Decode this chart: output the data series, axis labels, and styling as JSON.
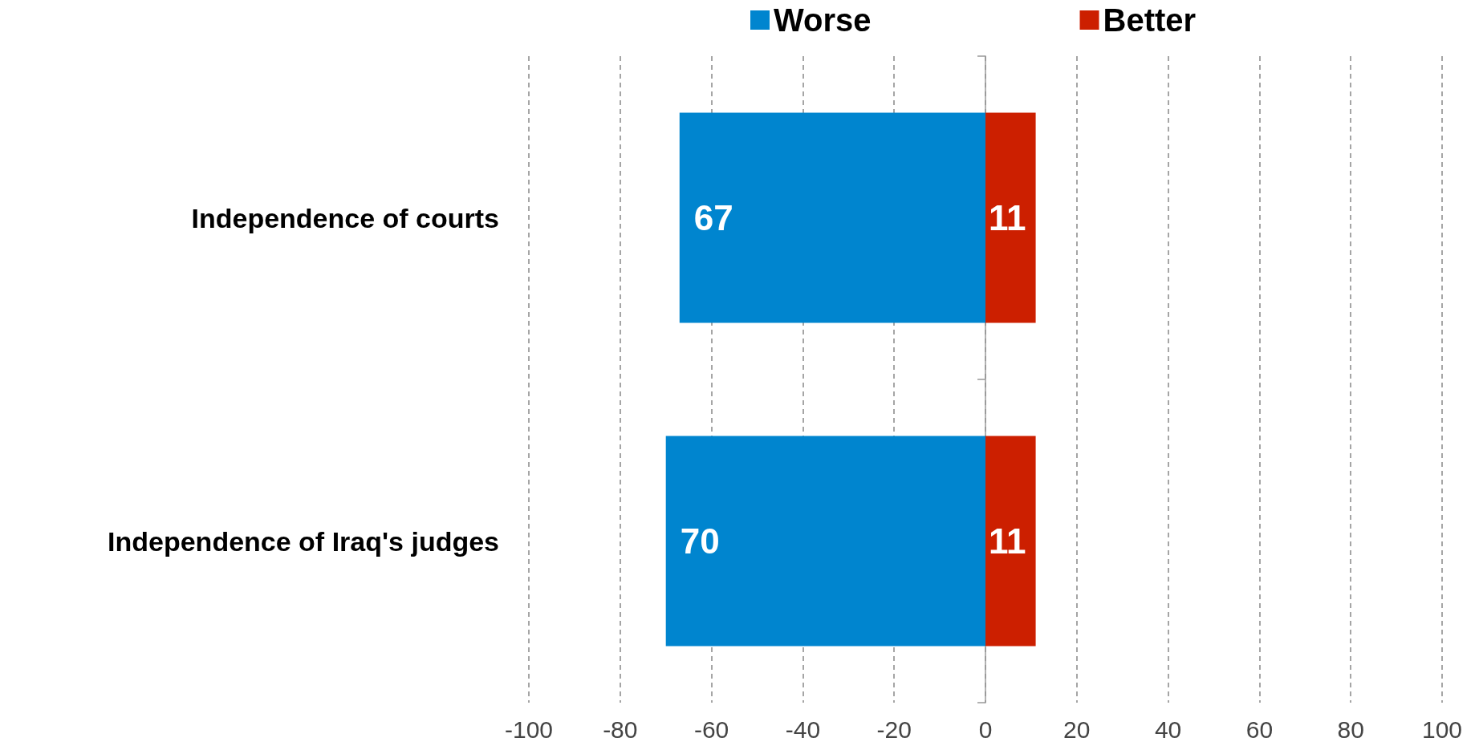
{
  "chart_data": {
    "type": "bar",
    "orientation": "horizontal",
    "categories": [
      "Independence of courts",
      "Independence of Iraq's judges"
    ],
    "series": [
      {
        "name": "Worse",
        "color": "#0085cf",
        "values": [
          67,
          70
        ],
        "base": [
          -67,
          -70
        ]
      },
      {
        "name": "Better",
        "color": "#cc1f00",
        "values": [
          11,
          11
        ]
      }
    ],
    "xlim": [
      -100,
      100
    ],
    "xticks": [
      -100,
      -80,
      -60,
      -40,
      -20,
      0,
      20,
      40,
      60,
      80,
      100
    ],
    "grid": "x",
    "legend": "top",
    "data_labels": true
  }
}
